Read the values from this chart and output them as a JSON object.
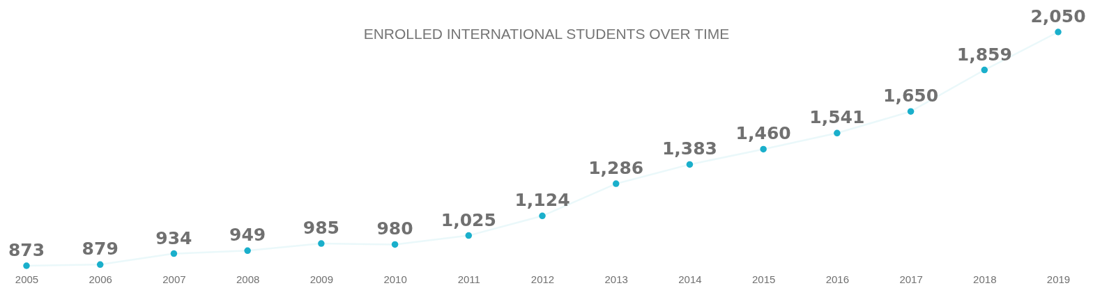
{
  "chart_data": {
    "type": "line",
    "title": "ENROLLED INTERNATIONAL STUDENTS OVER TIME",
    "categories": [
      "2005",
      "2006",
      "2007",
      "2008",
      "2009",
      "2010",
      "2011",
      "2012",
      "2013",
      "2014",
      "2015",
      "2016",
      "2017",
      "2018",
      "2019"
    ],
    "series": [
      {
        "color": "#1aafcb",
        "values": [
          873,
          879,
          934,
          949,
          985,
          980,
          1025,
          1124,
          1286,
          1383,
          1460,
          1541,
          1650,
          1859,
          2050
        ],
        "value_labels": [
          "873",
          "879",
          "934",
          "949",
          "985",
          "980",
          "1,025",
          "1,124",
          "1,286",
          "1,383",
          "1,460",
          "1,541",
          "1,650",
          "1,859",
          "2,050"
        ]
      }
    ],
    "marker": "circle"
  }
}
